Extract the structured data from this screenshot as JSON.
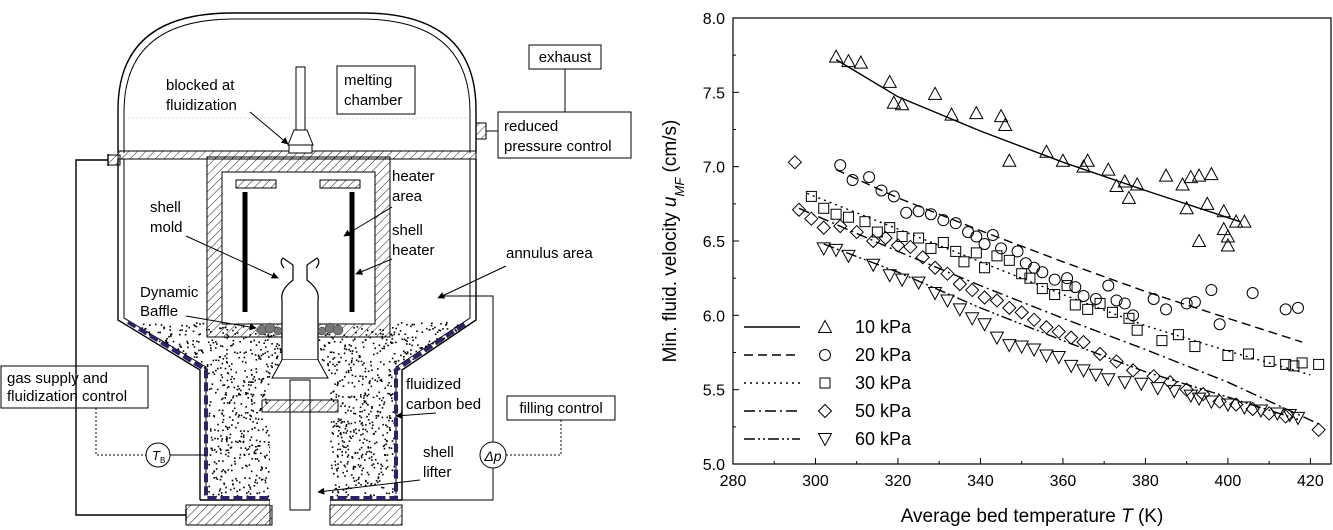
{
  "diagram": {
    "labels": {
      "exhaust": "exhaust",
      "blocked_line1": "blocked at",
      "blocked_line2": "fluidization",
      "melting_line1": "melting",
      "melting_line2": "chamber",
      "reduced_line1": "reduced",
      "reduced_line2": "pressure control",
      "heater_area_line1": "heater",
      "heater_area_line2": "area",
      "shell_mold_line1": "shell",
      "shell_mold_line2": "mold",
      "shell_heater_line1": "shell",
      "shell_heater_line2": "heater",
      "annulus_area": "annulus area",
      "dynamic_baffle_line1": "Dynamic",
      "dynamic_baffle_line2": "Baffle",
      "gas_supply_line1": "gas supply and",
      "gas_supply_line2": "fluidization control",
      "fluidized_line1": "fluidized",
      "fluidized_line2": "carbon bed",
      "filling_control": "filling control",
      "tb_symbol": "T",
      "tb_sub": "B",
      "dp_symbol": "Δp",
      "shell_lifter_line1": "shell",
      "shell_lifter_line2": "lifter"
    }
  },
  "chart_data": {
    "type": "scatter",
    "xlabel_main": "Average bed temperature ",
    "xlabel_var": "T",
    "xlabel_unit": " (K)",
    "ylabel_main": "Min. fluid. velocity ",
    "ylabel_var": "u",
    "ylabel_sub": "MF",
    "ylabel_unit": " (cm/s)",
    "xlim": [
      280,
      425
    ],
    "ylim": [
      5.0,
      8.0
    ],
    "x_ticks": [
      "280",
      "300",
      "320",
      "340",
      "360",
      "380",
      "400",
      "420"
    ],
    "y_ticks": [
      "5.0",
      "5.5",
      "6.0",
      "6.5",
      "7.0",
      "7.5",
      "8.0"
    ],
    "legend_position": "bottom-left",
    "series": [
      {
        "name": "10 kPa",
        "marker": "triangle-up",
        "line_style": "solid",
        "fit": [
          [
            305,
            7.72
          ],
          [
            320,
            7.47
          ],
          [
            340,
            7.24
          ],
          [
            360,
            7.03
          ],
          [
            380,
            6.84
          ],
          [
            403,
            6.63
          ]
        ],
        "points": [
          [
            305,
            7.74
          ],
          [
            308,
            7.71
          ],
          [
            311,
            7.7
          ],
          [
            318,
            7.57
          ],
          [
            319,
            7.43
          ],
          [
            321,
            7.42
          ],
          [
            329,
            7.49
          ],
          [
            333,
            7.35
          ],
          [
            339,
            7.36
          ],
          [
            345,
            7.34
          ],
          [
            346,
            7.28
          ],
          [
            347,
            7.04
          ],
          [
            356,
            7.1
          ],
          [
            360,
            7.04
          ],
          [
            365,
            7.0
          ],
          [
            366,
            7.04
          ],
          [
            371,
            6.98
          ],
          [
            373,
            6.87
          ],
          [
            375,
            6.9
          ],
          [
            376,
            6.79
          ],
          [
            378,
            6.88
          ],
          [
            385,
            6.94
          ],
          [
            389,
            6.88
          ],
          [
            390,
            6.72
          ],
          [
            391,
            6.93
          ],
          [
            393,
            6.94
          ],
          [
            393,
            6.5
          ],
          [
            395,
            6.75
          ],
          [
            396,
            6.95
          ],
          [
            399,
            6.58
          ],
          [
            399,
            6.7
          ],
          [
            400,
            6.53
          ],
          [
            400,
            6.47
          ],
          [
            402,
            6.63
          ],
          [
            404,
            6.63
          ]
        ]
      },
      {
        "name": "20 kPa",
        "marker": "circle",
        "line_style": "dashed",
        "fit": [
          [
            305,
            6.98
          ],
          [
            320,
            6.79
          ],
          [
            340,
            6.57
          ],
          [
            360,
            6.36
          ],
          [
            380,
            6.16
          ],
          [
            400,
            5.98
          ],
          [
            418,
            5.82
          ]
        ],
        "points": [
          [
            306,
            7.01
          ],
          [
            309,
            6.91
          ],
          [
            313,
            6.93
          ],
          [
            316,
            6.84
          ],
          [
            319,
            6.8
          ],
          [
            322,
            6.69
          ],
          [
            325,
            6.7
          ],
          [
            328,
            6.68
          ],
          [
            331,
            6.64
          ],
          [
            334,
            6.62
          ],
          [
            337,
            6.56
          ],
          [
            339,
            6.53
          ],
          [
            341,
            6.48
          ],
          [
            343,
            6.54
          ],
          [
            345,
            6.45
          ],
          [
            349,
            6.43
          ],
          [
            351,
            6.35
          ],
          [
            353,
            6.32
          ],
          [
            355,
            6.29
          ],
          [
            358,
            6.24
          ],
          [
            361,
            6.25
          ],
          [
            363,
            6.19
          ],
          [
            365,
            6.13
          ],
          [
            368,
            6.11
          ],
          [
            371,
            6.2
          ],
          [
            373,
            6.1
          ],
          [
            375,
            6.08
          ],
          [
            377,
            6.0
          ],
          [
            382,
            6.11
          ],
          [
            385,
            6.04
          ],
          [
            390,
            6.08
          ],
          [
            392,
            6.09
          ],
          [
            396,
            6.17
          ],
          [
            398,
            5.94
          ],
          [
            406,
            6.15
          ],
          [
            414,
            6.04
          ],
          [
            417,
            6.05
          ]
        ]
      },
      {
        "name": "30 kPa",
        "marker": "square",
        "line_style": "dotted",
        "fit": [
          [
            298,
            6.82
          ],
          [
            320,
            6.58
          ],
          [
            340,
            6.36
          ],
          [
            360,
            6.14
          ],
          [
            380,
            5.93
          ],
          [
            400,
            5.76
          ],
          [
            420,
            5.6
          ]
        ],
        "points": [
          [
            299,
            6.8
          ],
          [
            302,
            6.72
          ],
          [
            305,
            6.68
          ],
          [
            308,
            6.66
          ],
          [
            312,
            6.63
          ],
          [
            315,
            6.56
          ],
          [
            318,
            6.59
          ],
          [
            321,
            6.53
          ],
          [
            325,
            6.52
          ],
          [
            328,
            6.45
          ],
          [
            331,
            6.49
          ],
          [
            334,
            6.43
          ],
          [
            336,
            6.36
          ],
          [
            339,
            6.42
          ],
          [
            341,
            6.32
          ],
          [
            344,
            6.4
          ],
          [
            347,
            6.37
          ],
          [
            350,
            6.28
          ],
          [
            352,
            6.25
          ],
          [
            355,
            6.18
          ],
          [
            358,
            6.14
          ],
          [
            361,
            6.2
          ],
          [
            363,
            6.07
          ],
          [
            366,
            6.04
          ],
          [
            369,
            6.08
          ],
          [
            372,
            6.02
          ],
          [
            376,
            5.98
          ],
          [
            378,
            5.9
          ],
          [
            384,
            5.83
          ],
          [
            388,
            5.87
          ],
          [
            392,
            5.79
          ],
          [
            400,
            5.73
          ],
          [
            405,
            5.74
          ],
          [
            410,
            5.69
          ],
          [
            414,
            5.67
          ],
          [
            416,
            5.66
          ],
          [
            418,
            5.68
          ],
          [
            422,
            5.67
          ]
        ]
      },
      {
        "name": "50 kPa",
        "marker": "diamond",
        "line_style": "dashdot",
        "fit": [
          [
            296,
            6.72
          ],
          [
            320,
            6.43
          ],
          [
            340,
            6.2
          ],
          [
            360,
            5.98
          ],
          [
            380,
            5.77
          ],
          [
            400,
            5.55
          ],
          [
            422,
            5.27
          ]
        ],
        "points": [
          [
            295,
            7.03
          ],
          [
            296,
            6.71
          ],
          [
            299,
            6.65
          ],
          [
            302,
            6.59
          ],
          [
            306,
            6.6
          ],
          [
            310,
            6.56
          ],
          [
            314,
            6.5
          ],
          [
            317,
            6.52
          ],
          [
            320,
            6.47
          ],
          [
            323,
            6.46
          ],
          [
            326,
            6.39
          ],
          [
            329,
            6.32
          ],
          [
            332,
            6.28
          ],
          [
            335,
            6.21
          ],
          [
            338,
            6.17
          ],
          [
            341,
            6.12
          ],
          [
            344,
            6.1
          ],
          [
            347,
            6.05
          ],
          [
            350,
            6.02
          ],
          [
            353,
            5.97
          ],
          [
            356,
            5.92
          ],
          [
            359,
            5.89
          ],
          [
            362,
            5.85
          ],
          [
            365,
            5.82
          ],
          [
            369,
            5.74
          ],
          [
            373,
            5.69
          ],
          [
            377,
            5.63
          ],
          [
            382,
            5.59
          ],
          [
            386,
            5.55
          ],
          [
            390,
            5.5
          ],
          [
            394,
            5.47
          ],
          [
            398,
            5.42
          ],
          [
            402,
            5.4
          ],
          [
            406,
            5.37
          ],
          [
            410,
            5.34
          ],
          [
            414,
            5.32
          ],
          [
            422,
            5.23
          ]
        ]
      },
      {
        "name": "60 kPa",
        "marker": "triangle-down",
        "line_style": "dashdotdot",
        "fit": [
          [
            302,
            6.48
          ],
          [
            320,
            6.29
          ],
          [
            340,
            6.05
          ],
          [
            360,
            5.83
          ],
          [
            380,
            5.62
          ],
          [
            400,
            5.45
          ],
          [
            417,
            5.3
          ]
        ],
        "points": [
          [
            302,
            6.45
          ],
          [
            305,
            6.44
          ],
          [
            308,
            6.4
          ],
          [
            314,
            6.34
          ],
          [
            318,
            6.27
          ],
          [
            321,
            6.24
          ],
          [
            325,
            6.22
          ],
          [
            329,
            6.15
          ],
          [
            332,
            6.1
          ],
          [
            335,
            6.04
          ],
          [
            338,
            5.98
          ],
          [
            341,
            5.94
          ],
          [
            344,
            5.85
          ],
          [
            347,
            5.8
          ],
          [
            350,
            5.79
          ],
          [
            353,
            5.77
          ],
          [
            356,
            5.73
          ],
          [
            359,
            5.72
          ],
          [
            362,
            5.66
          ],
          [
            365,
            5.63
          ],
          [
            368,
            5.6
          ],
          [
            371,
            5.57
          ],
          [
            375,
            5.55
          ],
          [
            379,
            5.54
          ],
          [
            383,
            5.51
          ],
          [
            387,
            5.49
          ],
          [
            391,
            5.46
          ],
          [
            393,
            5.44
          ],
          [
            396,
            5.42
          ],
          [
            400,
            5.4
          ],
          [
            404,
            5.38
          ],
          [
            408,
            5.36
          ],
          [
            412,
            5.34
          ],
          [
            415,
            5.33
          ],
          [
            417,
            5.31
          ]
        ]
      }
    ]
  }
}
